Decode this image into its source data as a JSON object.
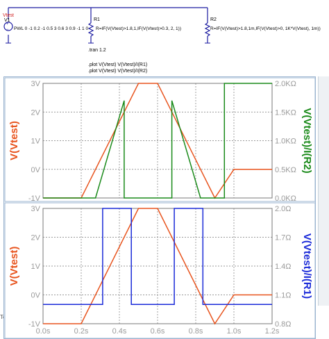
{
  "schematic": {
    "sources": {
      "net_label": "Vtest",
      "source_name": "V1",
      "source_value": "PWL 0 -1 0.2 -1 0.5 3 0.6 3 0.9 -1 1 0",
      "r1_name": "R1",
      "r1_value": "R=IF(V(Vtest)>1.8,1,IF(V(Vtest)>0.3, 2, 1))",
      "r2_name": "R2",
      "r2_value": "R=IF(V(Vtest)>1.8,1m,IF(V(Vtest)>0, 1K*V(Vtest), 1m))"
    },
    "directives": {
      "tran": ".tran 1.2",
      "plot1": ".plot V(Vtest) V(Vtest)/I(R1)",
      "plot2": ".plot V(Vtest) V(Vtest)/I(R2)"
    }
  },
  "edge_fragment": "Te",
  "colors": {
    "vtest": "#e8541e",
    "r2_trace": "#1a8a1a",
    "r1_trace": "#1a2ad8",
    "grid": "#7a7a7a",
    "tick_text": "#9a9a9a",
    "schematic_wire": "#1a1aa0",
    "net_label": "#d02020"
  },
  "chart_data": [
    {
      "type": "line",
      "title": "",
      "xlabel": "",
      "ylabel": "V(Vtest)",
      "ylabel_right": "V(Vtest)/I(R2)",
      "xlim": [
        0,
        1.2
      ],
      "ylim": [
        -1,
        3
      ],
      "ylim_right": [
        0,
        2000
      ],
      "grid": true,
      "y_ticks": [
        "-1V",
        "0V",
        "1V",
        "2V",
        "3V"
      ],
      "y_ticks_right": [
        "0.0KΩ",
        "0.5KΩ",
        "1.0KΩ",
        "1.5KΩ",
        "2.0KΩ"
      ],
      "series": [
        {
          "name": "V(Vtest)",
          "axis": "left",
          "x": [
            0,
            0.2,
            0.5,
            0.6,
            0.9,
            1.0,
            1.2
          ],
          "y": [
            -1,
            -1,
            3,
            3,
            -1,
            0,
            0
          ]
        },
        {
          "name": "V(Vtest)/I(R2)",
          "axis": "right",
          "x": [
            0,
            0.275,
            0.275,
            0.425,
            0.425,
            0.675,
            0.675,
            0.825,
            0.825,
            0.95,
            0.95,
            1.2
          ],
          "y": [
            0,
            0,
            0,
            1700,
            0,
            0,
            1700,
            0,
            0,
            0,
            2000,
            2000
          ]
        }
      ]
    },
    {
      "type": "line",
      "title": "",
      "xlabel": "",
      "ylabel": "V(Vtest)",
      "ylabel_right": "V(Vtest)/I(R1)",
      "xlim": [
        0,
        1.2
      ],
      "ylim": [
        -1,
        3
      ],
      "ylim_right": [
        0.8,
        2.0
      ],
      "grid": true,
      "x_ticks": [
        "0.0s",
        "0.2s",
        "0.4s",
        "0.6s",
        "0.8s",
        "1.0s",
        "1.2s"
      ],
      "y_ticks": [
        "-1V",
        "0V",
        "1V",
        "2V",
        "3V"
      ],
      "y_ticks_right": [
        "0.8Ω",
        "1.1Ω",
        "1.4Ω",
        "1.7Ω",
        "2.0Ω"
      ],
      "series": [
        {
          "name": "V(Vtest)",
          "axis": "left",
          "x": [
            0,
            0.2,
            0.5,
            0.6,
            0.9,
            1.0,
            1.2
          ],
          "y": [
            -1,
            -1,
            3,
            3,
            -1,
            0,
            0
          ]
        },
        {
          "name": "V(Vtest)/I(R1)",
          "axis": "right",
          "x": [
            0,
            0.3125,
            0.3125,
            0.4625,
            0.4625,
            0.6875,
            0.6875,
            0.8375,
            0.8375,
            0.975,
            0.975,
            1.2
          ],
          "y": [
            1,
            1,
            2,
            2,
            1,
            1,
            2,
            2,
            1,
            1,
            1,
            1
          ]
        }
      ]
    }
  ]
}
